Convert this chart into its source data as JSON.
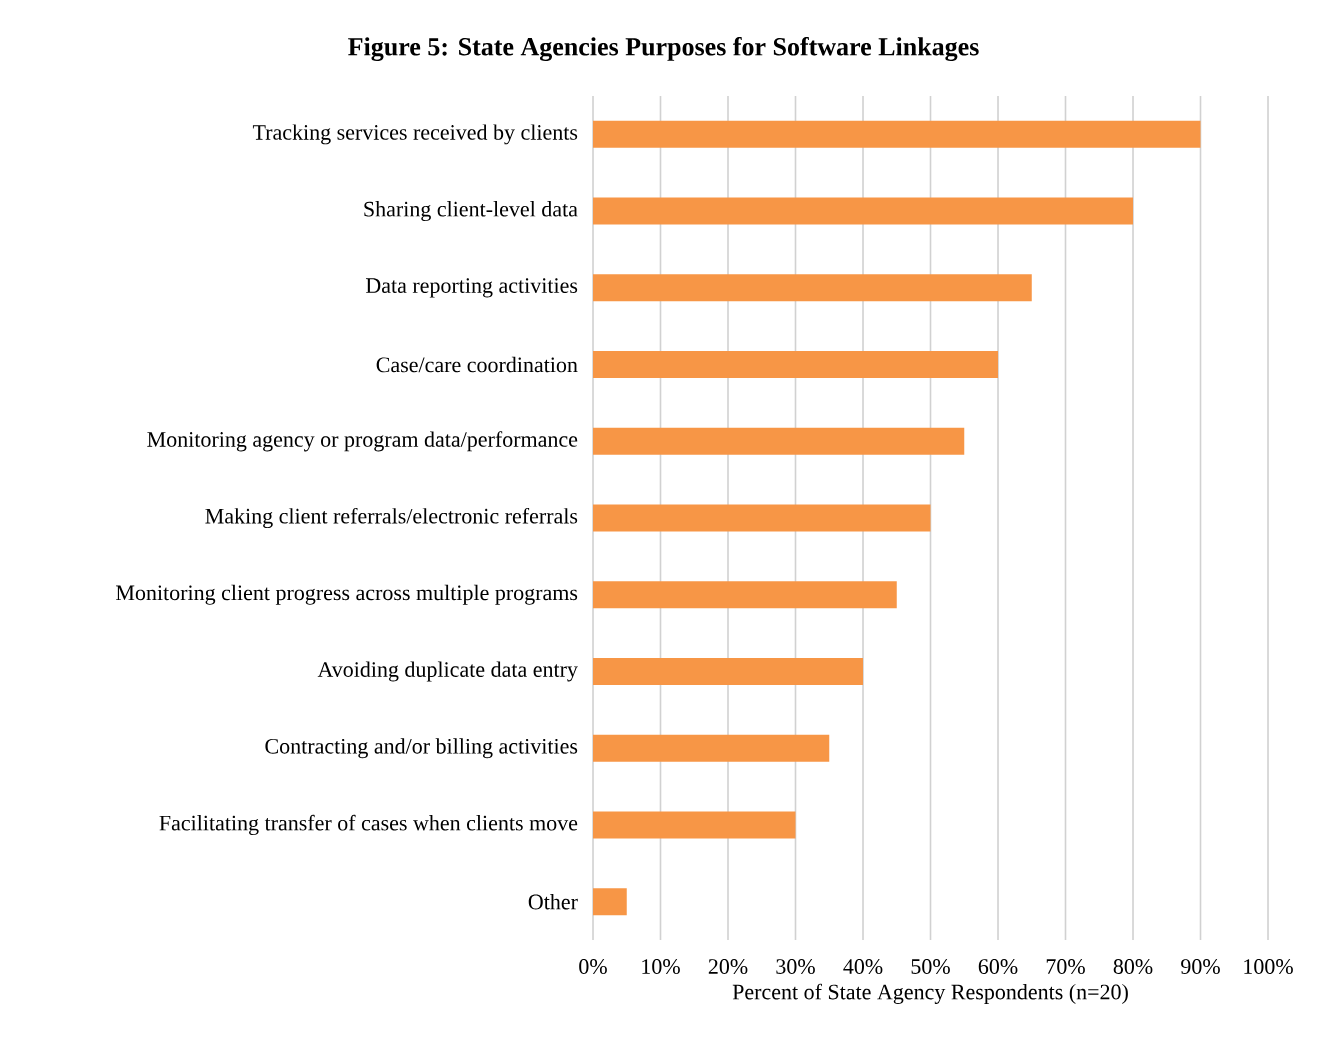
{
  "chart_data": {
    "type": "bar",
    "orientation": "horizontal",
    "title": "**Figure 5: State Agencies Purposes for Software Linkages**",
    "xlabel": "Percent of State Agency Respondents (n=20)",
    "categories": [
      "Tracking services received by clients",
      "Sharing client-level data",
      "Data reporting activities",
      "Case/care coordination",
      "Monitoring agency or program data/performance",
      "Making client referrals/electronic referrals",
      "Monitoring client progress across multiple programs",
      "Avoiding duplicate data entry",
      "Contracting and/or billing activities",
      "Facilitating transfer of cases when clients move",
      "Other"
    ],
    "values": [
      90,
      80,
      65,
      60,
      55,
      50,
      45,
      40,
      35,
      30,
      5
    ],
    "color": "#f79646",
    "xlim": [
      0,
      100
    ],
    "xticks": [
      {
        "value": 0,
        "label": "0%"
      },
      {
        "value": 10,
        "label": "10%"
      },
      {
        "value": 20,
        "label": "20%"
      },
      {
        "value": 30,
        "label": "30%"
      },
      {
        "value": 40,
        "label": "40%"
      },
      {
        "value": 50,
        "label": "50%"
      },
      {
        "value": 60,
        "label": "60%"
      },
      {
        "value": 70,
        "label": "70%"
      },
      {
        "value": 80,
        "label": "80%"
      },
      {
        "value": 90,
        "label": "90%"
      },
      {
        "value": 100,
        "label": "100%"
      }
    ],
    "grid": "x"
  }
}
